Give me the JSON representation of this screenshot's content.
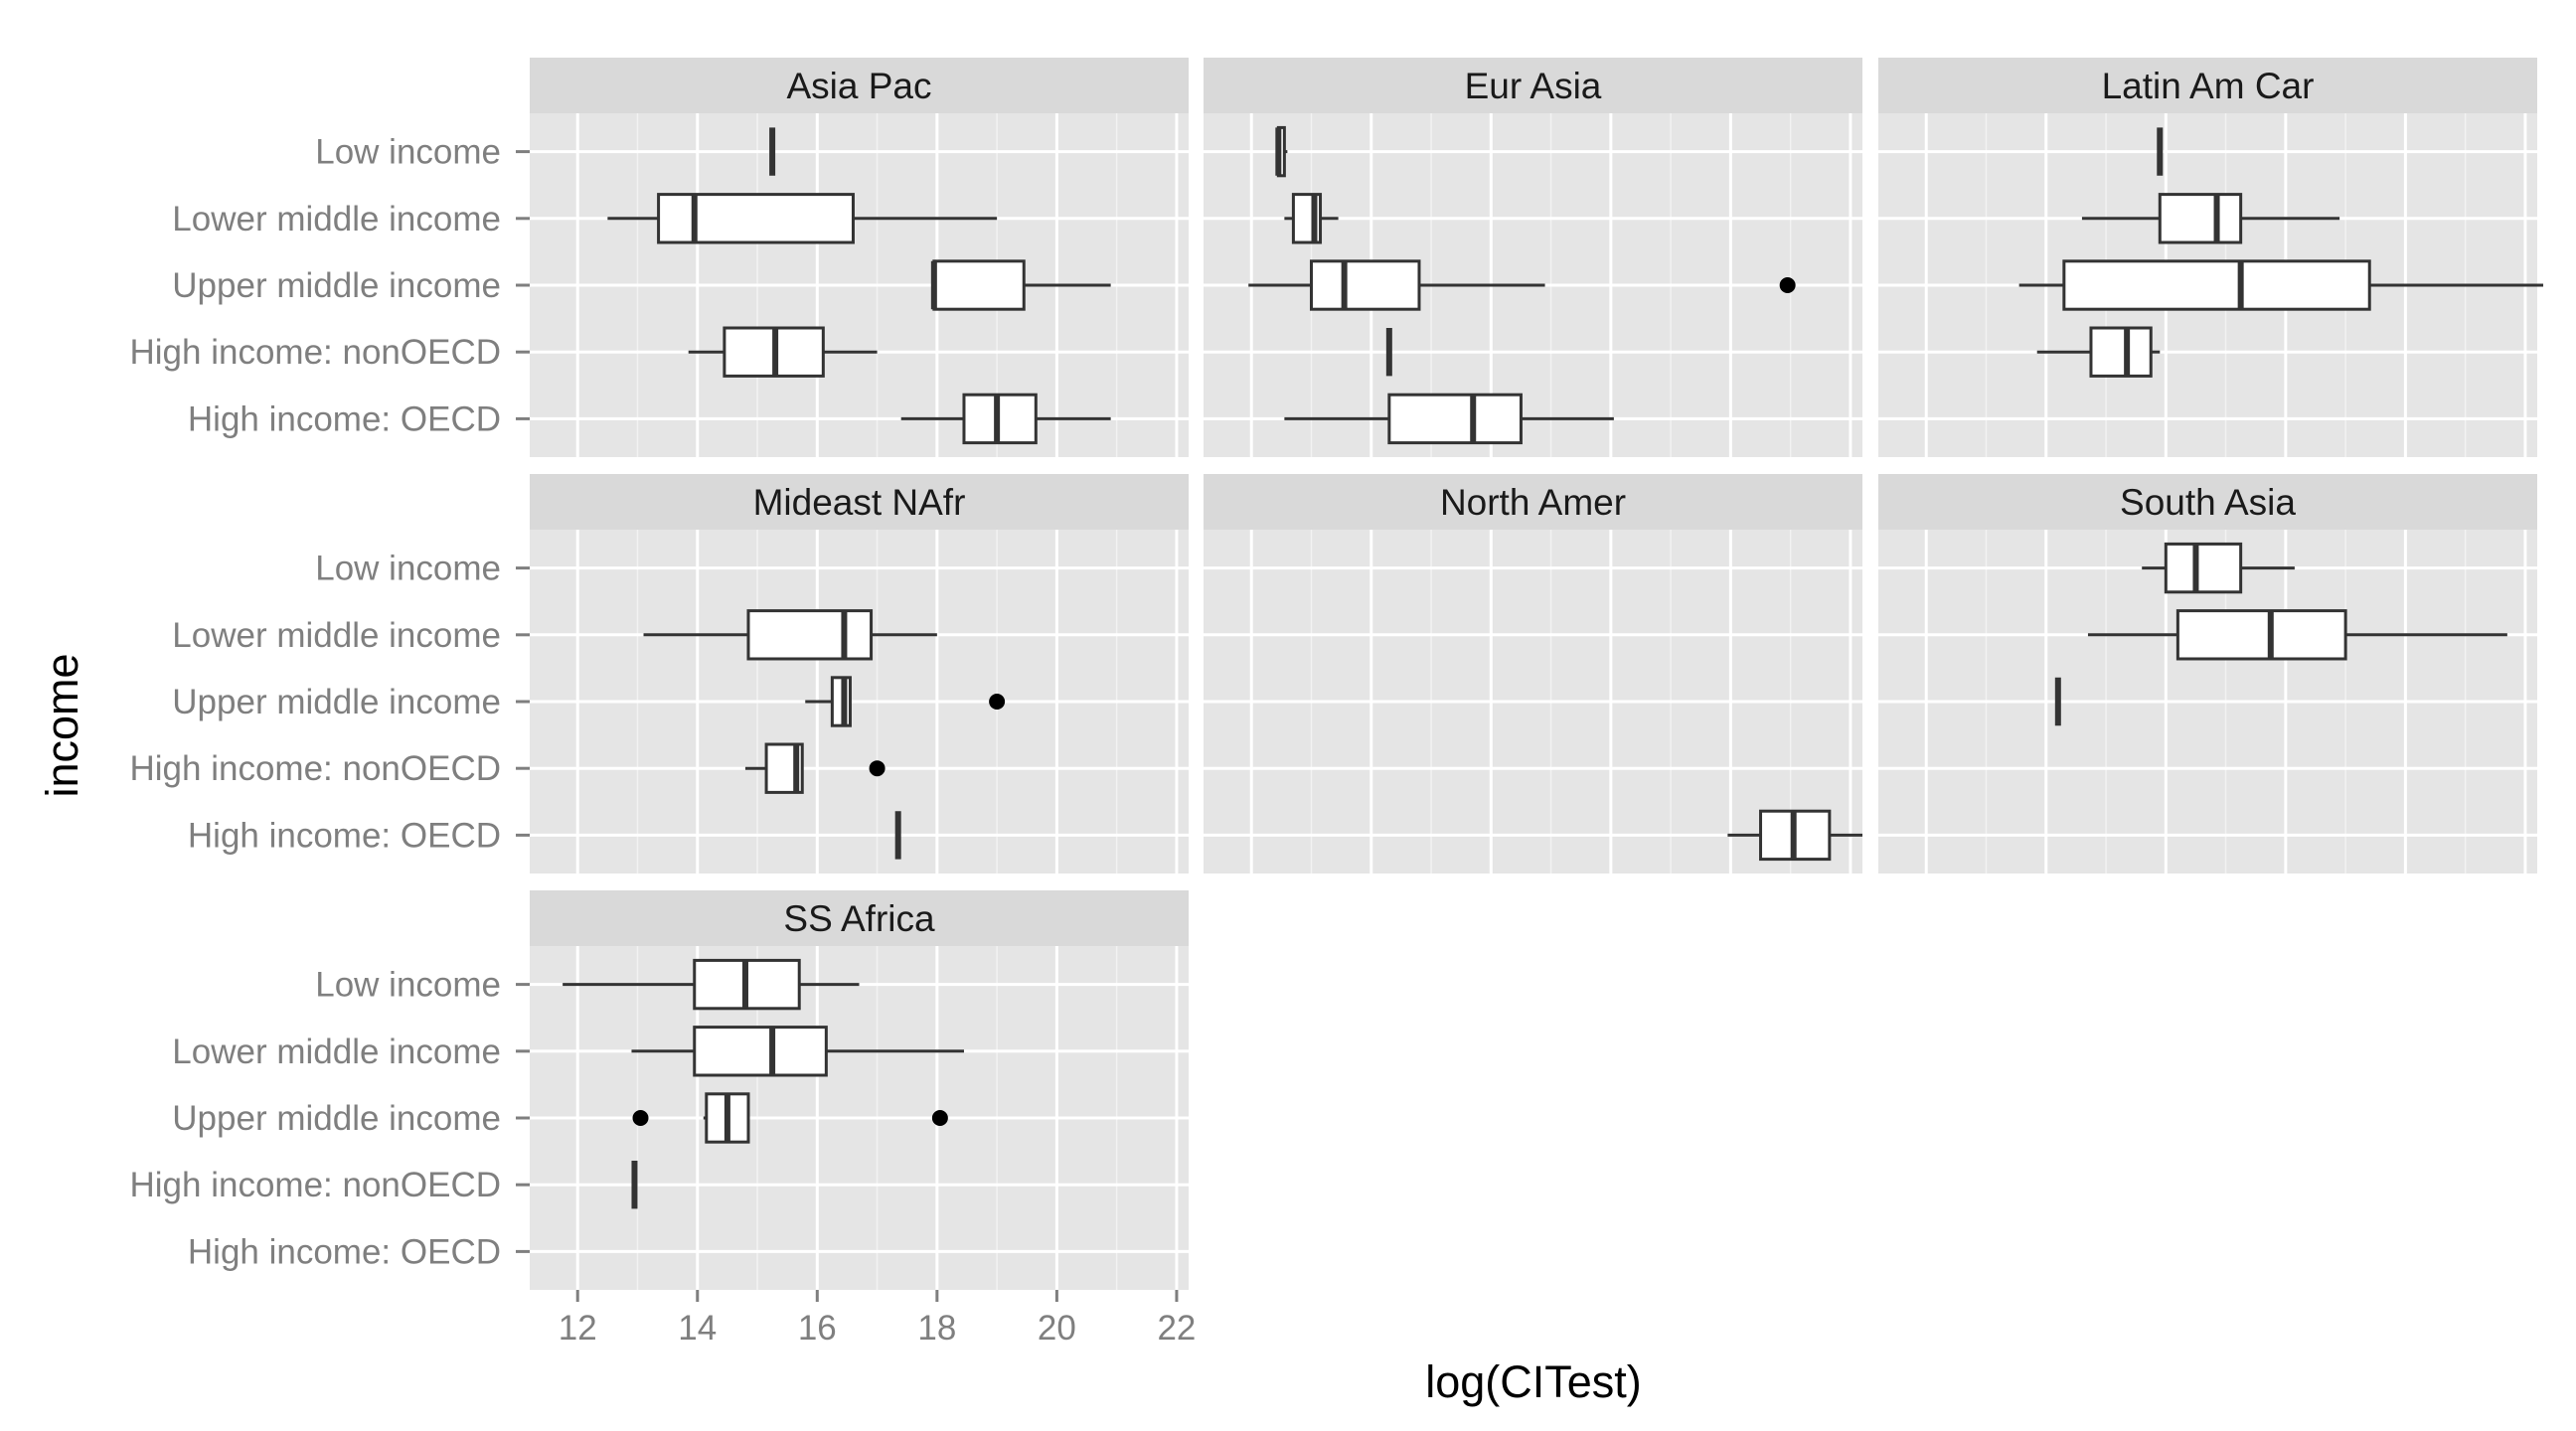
{
  "chart_data": {
    "type": "boxplot",
    "xlabel": "log(CITest)",
    "ylabel": "income",
    "xlim": [
      11.2,
      22.2
    ],
    "x_ticks": [
      12,
      14,
      16,
      18,
      20,
      22
    ],
    "x_tick_labels": [
      "12",
      "14",
      "16",
      "18",
      "20",
      "22"
    ],
    "categories": [
      "Low income",
      "Lower middle income",
      "Upper middle income",
      "High income: nonOECD",
      "High income: OECD"
    ],
    "panels": [
      {
        "name": "Asia Pac",
        "boxes": [
          {
            "category": "Low income",
            "min": 15.25,
            "q1": 15.25,
            "median": 15.25,
            "q3": 15.25,
            "max": 15.25,
            "outliers": []
          },
          {
            "category": "Lower middle income",
            "min": 12.5,
            "q1": 13.35,
            "median": 13.95,
            "q3": 16.6,
            "max": 19.0,
            "outliers": []
          },
          {
            "category": "Upper middle income",
            "min": 17.95,
            "q1": 17.95,
            "median": 17.95,
            "q3": 19.45,
            "max": 20.9,
            "outliers": []
          },
          {
            "category": "High income: nonOECD",
            "min": 13.85,
            "q1": 14.45,
            "median": 15.3,
            "q3": 16.1,
            "max": 17.0,
            "outliers": []
          },
          {
            "category": "High income: OECD",
            "min": 17.4,
            "q1": 18.45,
            "median": 19.0,
            "q3": 19.65,
            "max": 20.9,
            "outliers": []
          }
        ]
      },
      {
        "name": "Eur Asia",
        "boxes": [
          {
            "category": "Low income",
            "min": 12.45,
            "q1": 12.45,
            "median": 12.45,
            "q3": 12.55,
            "max": 12.6,
            "outliers": []
          },
          {
            "category": "Lower middle income",
            "min": 12.55,
            "q1": 12.7,
            "median": 13.05,
            "q3": 13.15,
            "max": 13.45,
            "outliers": []
          },
          {
            "category": "Upper middle income",
            "min": 11.95,
            "q1": 13.0,
            "median": 13.55,
            "q3": 14.8,
            "max": 16.9,
            "outliers": [
              20.95
            ]
          },
          {
            "category": "High income: nonOECD",
            "min": 14.3,
            "q1": 14.3,
            "median": 14.3,
            "q3": 14.3,
            "max": 14.3,
            "outliers": []
          },
          {
            "category": "High income: OECD",
            "min": 12.55,
            "q1": 14.3,
            "median": 15.7,
            "q3": 16.5,
            "max": 18.05,
            "outliers": []
          }
        ]
      },
      {
        "name": "Latin Am Car",
        "boxes": [
          {
            "category": "Low income",
            "min": 15.9,
            "q1": 15.9,
            "median": 15.9,
            "q3": 15.9,
            "max": 15.9,
            "outliers": []
          },
          {
            "category": "Lower middle income",
            "min": 14.6,
            "q1": 15.9,
            "median": 16.85,
            "q3": 17.25,
            "max": 18.9,
            "outliers": []
          },
          {
            "category": "Upper middle income",
            "min": 13.55,
            "q1": 14.3,
            "median": 17.25,
            "q3": 19.4,
            "max": 22.3,
            "outliers": []
          },
          {
            "category": "High income: nonOECD",
            "min": 13.85,
            "q1": 14.75,
            "median": 15.35,
            "q3": 15.75,
            "max": 15.9,
            "outliers": []
          },
          {
            "category": "High income: OECD",
            "min": null,
            "q1": null,
            "median": null,
            "q3": null,
            "max": null,
            "outliers": []
          }
        ]
      },
      {
        "name": "Mideast NAfr",
        "boxes": [
          {
            "category": "Low income",
            "min": null,
            "q1": null,
            "median": null,
            "q3": null,
            "max": null,
            "outliers": []
          },
          {
            "category": "Lower middle income",
            "min": 13.1,
            "q1": 14.85,
            "median": 16.45,
            "q3": 16.9,
            "max": 18.0,
            "outliers": []
          },
          {
            "category": "Upper middle income",
            "min": 15.8,
            "q1": 16.25,
            "median": 16.45,
            "q3": 16.55,
            "max": 16.55,
            "outliers": [
              19.0
            ]
          },
          {
            "category": "High income: nonOECD",
            "min": 14.8,
            "q1": 15.15,
            "median": 15.65,
            "q3": 15.75,
            "max": 15.75,
            "outliers": [
              17.0
            ]
          },
          {
            "category": "High income: OECD",
            "min": 17.35,
            "q1": 17.35,
            "median": 17.35,
            "q3": 17.35,
            "max": 17.35,
            "outliers": []
          }
        ]
      },
      {
        "name": "North Amer",
        "boxes": [
          {
            "category": "Low income",
            "min": null,
            "q1": null,
            "median": null,
            "q3": null,
            "max": null,
            "outliers": []
          },
          {
            "category": "Lower middle income",
            "min": null,
            "q1": null,
            "median": null,
            "q3": null,
            "max": null,
            "outliers": []
          },
          {
            "category": "Upper middle income",
            "min": null,
            "q1": null,
            "median": null,
            "q3": null,
            "max": null,
            "outliers": []
          },
          {
            "category": "High income: nonOECD",
            "min": null,
            "q1": null,
            "median": null,
            "q3": null,
            "max": null,
            "outliers": []
          },
          {
            "category": "High income: OECD",
            "min": 19.95,
            "q1": 20.5,
            "median": 21.05,
            "q3": 21.65,
            "max": 22.2,
            "outliers": []
          }
        ]
      },
      {
        "name": "South Asia",
        "boxes": [
          {
            "category": "Low income",
            "min": 15.6,
            "q1": 16.0,
            "median": 16.5,
            "q3": 17.25,
            "max": 18.15,
            "outliers": []
          },
          {
            "category": "Lower middle income",
            "min": 14.7,
            "q1": 16.2,
            "median": 17.75,
            "q3": 19.0,
            "max": 21.7,
            "outliers": []
          },
          {
            "category": "Upper middle income",
            "min": 14.2,
            "q1": 14.2,
            "median": 14.2,
            "q3": 14.2,
            "max": 14.2,
            "outliers": []
          },
          {
            "category": "High income: nonOECD",
            "min": null,
            "q1": null,
            "median": null,
            "q3": null,
            "max": null,
            "outliers": []
          },
          {
            "category": "High income: OECD",
            "min": null,
            "q1": null,
            "median": null,
            "q3": null,
            "max": null,
            "outliers": []
          }
        ]
      },
      {
        "name": "SS Africa",
        "boxes": [
          {
            "category": "Low income",
            "min": 11.75,
            "q1": 13.95,
            "median": 14.8,
            "q3": 15.7,
            "max": 16.7,
            "outliers": []
          },
          {
            "category": "Lower middle income",
            "min": 12.9,
            "q1": 13.95,
            "median": 15.25,
            "q3": 16.15,
            "max": 18.45,
            "outliers": []
          },
          {
            "category": "Upper middle income",
            "min": 14.1,
            "q1": 14.15,
            "median": 14.5,
            "q3": 14.85,
            "max": 14.85,
            "outliers": [
              13.05,
              18.05
            ]
          },
          {
            "category": "High income: nonOECD",
            "min": 12.95,
            "q1": 12.95,
            "median": 12.95,
            "q3": 12.95,
            "max": 12.95,
            "outliers": []
          },
          {
            "category": "High income: OECD",
            "min": null,
            "q1": null,
            "median": null,
            "q3": null,
            "max": null,
            "outliers": []
          }
        ]
      }
    ]
  }
}
